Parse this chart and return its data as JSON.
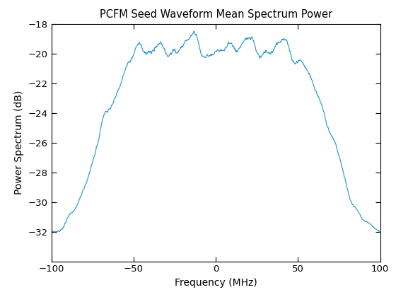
{
  "title": "PCFM Seed Waveform Mean Spectrum Power",
  "xlabel": "Frequency (MHz)",
  "ylabel": "Power Spectrum (dB)",
  "xlim": [
    -100,
    100
  ],
  "ylim": [
    -34,
    -18
  ],
  "xticks": [
    -100,
    -50,
    0,
    50,
    100
  ],
  "yticks": [
    -32,
    -30,
    -28,
    -26,
    -24,
    -22,
    -20,
    -18
  ],
  "line_color": "#2196c8",
  "line_width": 0.8,
  "background_color": "#ffffff",
  "flat_level": -19.6,
  "flat_edge": 42.0,
  "rolloff_db": 12.5,
  "seed": 7,
  "n_points": 1000
}
